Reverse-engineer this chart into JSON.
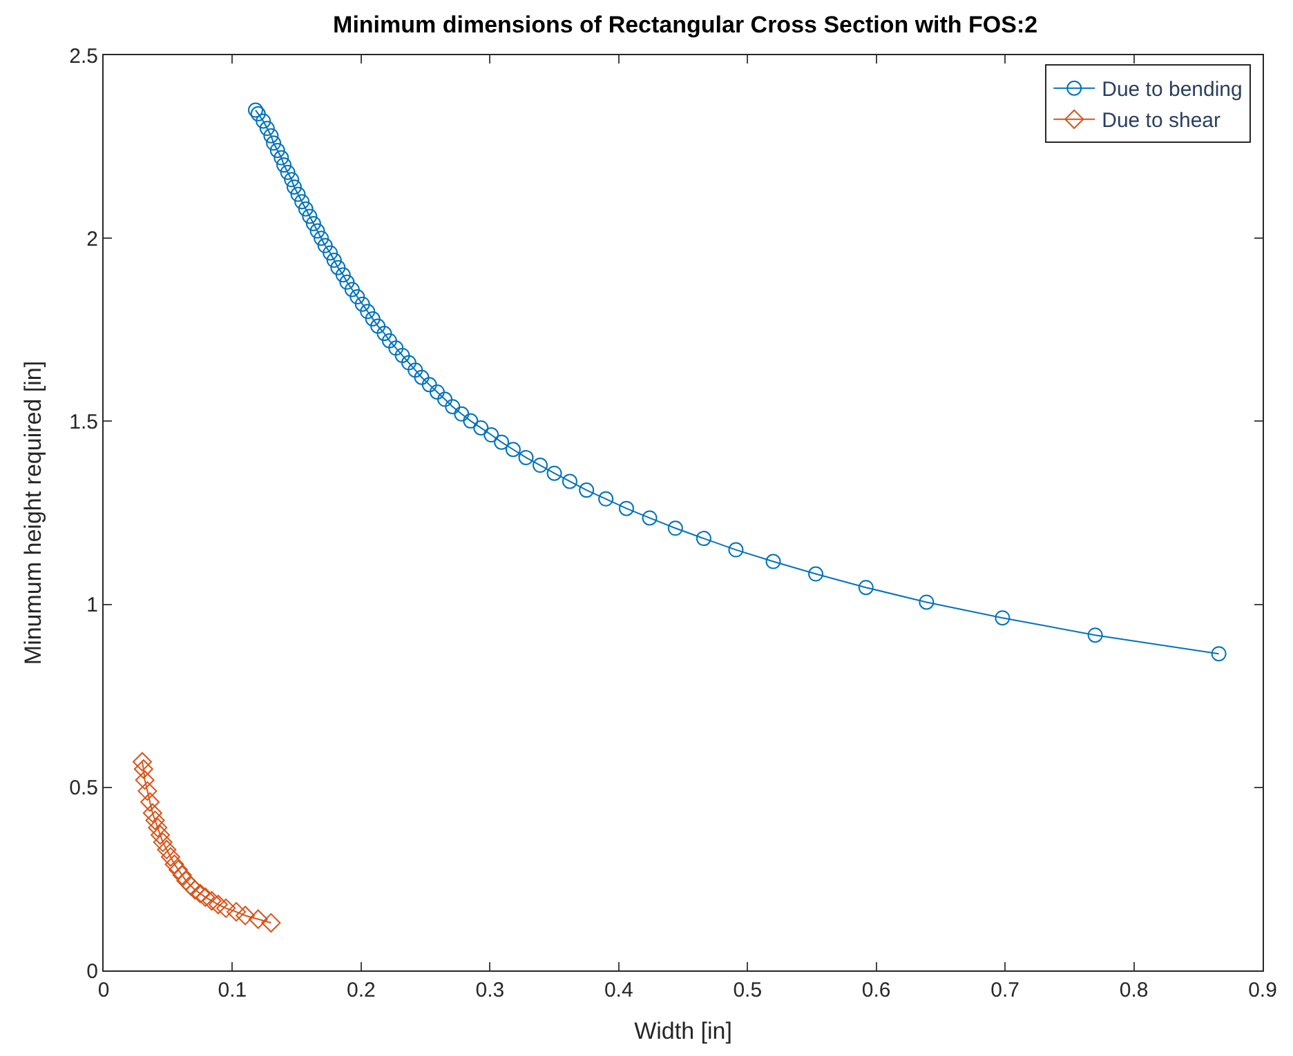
{
  "chart_data": {
    "type": "line",
    "title": "Minimum dimensions of Rectangular Cross Section with FOS:2",
    "xlabel": "Width [in]",
    "ylabel": "Minumum height required [in]",
    "xlim": [
      0,
      0.9
    ],
    "xticks": [
      0,
      0.1,
      0.2,
      0.3,
      0.4,
      0.5,
      0.6,
      0.7,
      0.8,
      0.9
    ],
    "ylim": [
      0,
      2.5
    ],
    "yticks": [
      0,
      0.5,
      1,
      1.5,
      2,
      2.5
    ],
    "grid": false,
    "legend": "top right",
    "series": [
      {
        "name": "Due to bending",
        "color": "#0072bd",
        "marker": "circle",
        "x": [
          0.118,
          0.12,
          0.124,
          0.127,
          0.13,
          0.132,
          0.135,
          0.138,
          0.14,
          0.143,
          0.146,
          0.148,
          0.151,
          0.154,
          0.157,
          0.16,
          0.163,
          0.166,
          0.169,
          0.172,
          0.176,
          0.179,
          0.182,
          0.186,
          0.189,
          0.193,
          0.197,
          0.201,
          0.205,
          0.209,
          0.213,
          0.218,
          0.222,
          0.227,
          0.232,
          0.237,
          0.242,
          0.247,
          0.253,
          0.259,
          0.265,
          0.271,
          0.278,
          0.285,
          0.293,
          0.301,
          0.309,
          0.318,
          0.328,
          0.339,
          0.35,
          0.362,
          0.375,
          0.39,
          0.406,
          0.424,
          0.444,
          0.466,
          0.491,
          0.52,
          0.553,
          0.592,
          0.639,
          0.698,
          0.77,
          0.866
        ],
        "values": [
          2.35,
          2.34,
          2.32,
          2.3,
          2.28,
          2.26,
          2.24,
          2.22,
          2.2,
          2.18,
          2.16,
          2.14,
          2.12,
          2.1,
          2.08,
          2.06,
          2.04,
          2.02,
          2.0,
          1.98,
          1.96,
          1.94,
          1.92,
          1.9,
          1.88,
          1.86,
          1.84,
          1.82,
          1.8,
          1.78,
          1.76,
          1.74,
          1.72,
          1.7,
          1.68,
          1.66,
          1.64,
          1.62,
          1.6,
          1.58,
          1.56,
          1.54,
          1.52,
          1.501,
          1.482,
          1.463,
          1.443,
          1.423,
          1.401,
          1.38,
          1.358,
          1.336,
          1.312,
          1.288,
          1.262,
          1.236,
          1.208,
          1.18,
          1.149,
          1.117,
          1.083,
          1.046,
          1.006,
          0.963,
          0.916,
          0.865
        ]
      },
      {
        "name": "Due to shear",
        "color": "#d95319",
        "marker": "diamond",
        "x": [
          0.03,
          0.031,
          0.032,
          0.034,
          0.036,
          0.038,
          0.04,
          0.042,
          0.044,
          0.046,
          0.049,
          0.052,
          0.055,
          0.058,
          0.061,
          0.064,
          0.068,
          0.071,
          0.075,
          0.079,
          0.084,
          0.089,
          0.095,
          0.103,
          0.11,
          0.12,
          0.13
        ],
        "values": [
          0.57,
          0.55,
          0.52,
          0.49,
          0.46,
          0.43,
          0.41,
          0.39,
          0.37,
          0.35,
          0.33,
          0.31,
          0.29,
          0.275,
          0.26,
          0.245,
          0.23,
          0.22,
          0.21,
          0.2,
          0.19,
          0.18,
          0.17,
          0.16,
          0.15,
          0.14,
          0.13
        ]
      }
    ]
  }
}
